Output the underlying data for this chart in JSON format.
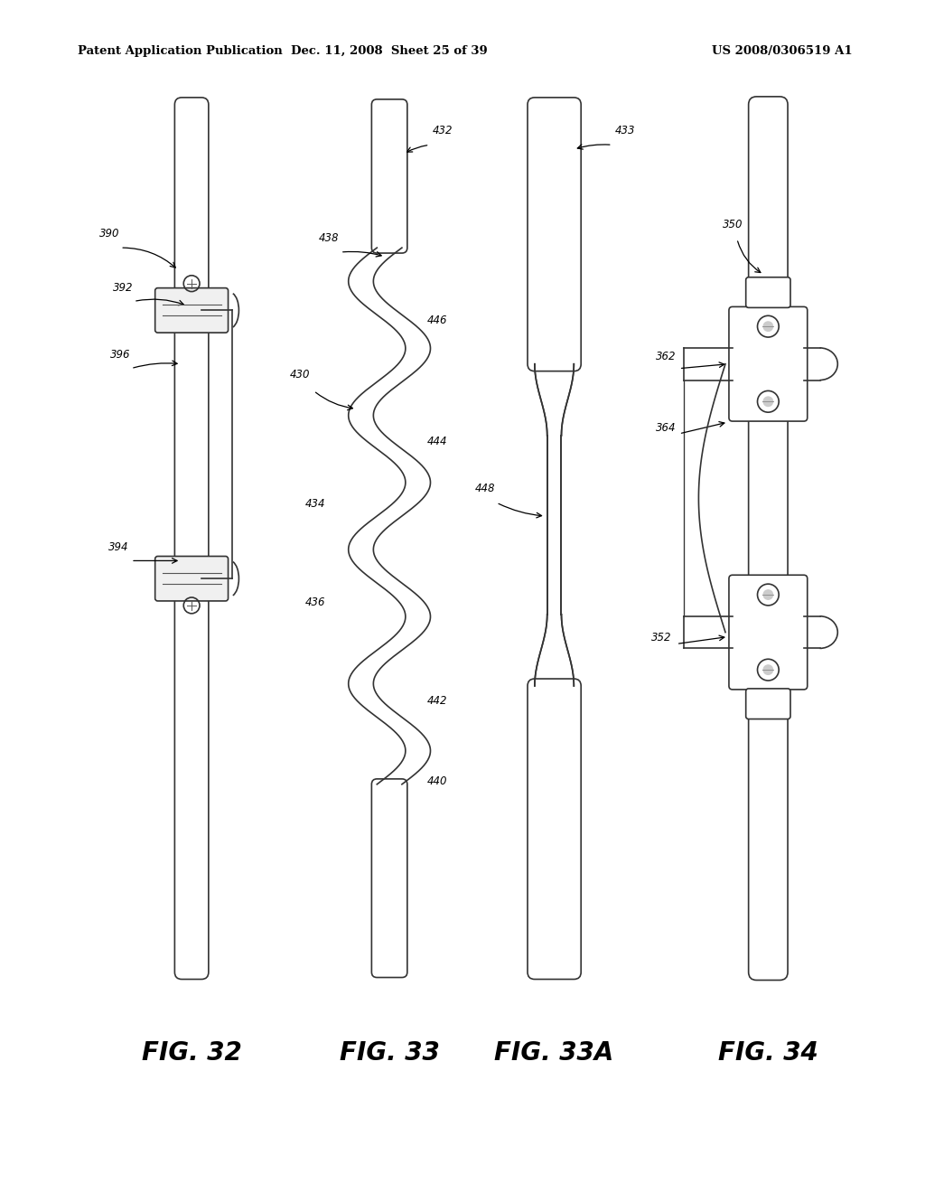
{
  "background_color": "#ffffff",
  "header_left": "Patent Application Publication",
  "header_center": "Dec. 11, 2008  Sheet 25 of 39",
  "header_right": "US 2008/0306519 A1",
  "fig_label_fontsize": 20
}
